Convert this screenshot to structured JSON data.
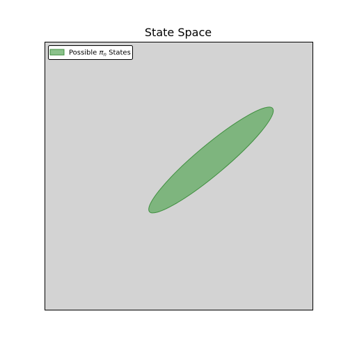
{
  "chart_data": {
    "type": "area",
    "title": "State Space",
    "xlabel": "",
    "ylabel": "",
    "grid": false,
    "axes_visible": false,
    "legend_placement": "top-left",
    "background_color": "#d3d3d3",
    "xlim": [
      0,
      1
    ],
    "ylim": [
      0,
      1
    ],
    "series": [
      {
        "name": "Possible π_n States",
        "legend_label_main": "Possible ",
        "legend_label_symbol": "π",
        "legend_label_subscript": "n",
        "legend_label_suffix": " States",
        "shape": "ellipse",
        "center": [
          0.62,
          0.56
        ],
        "semi_major": 0.3,
        "semi_minor": 0.055,
        "angle_deg": 40,
        "fill_color": "#5aa85a",
        "edge_color": "#3f8f3f",
        "fill_alpha": 0.7
      }
    ]
  }
}
